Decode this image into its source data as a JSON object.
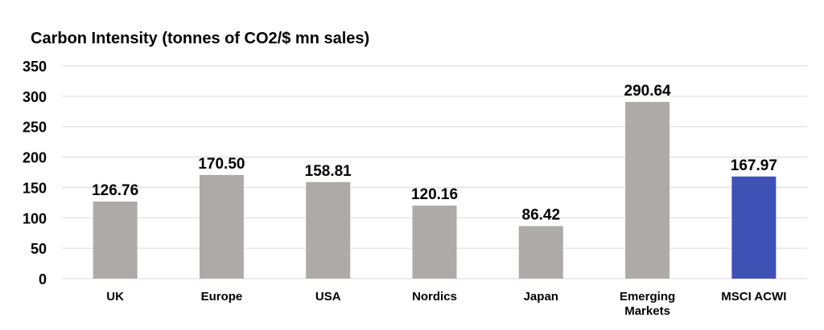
{
  "chart_data": {
    "type": "bar",
    "title": "Carbon Intensity (tonnes of CO2/$ mn sales)",
    "xlabel": "",
    "ylabel": "",
    "ylim": [
      0,
      350
    ],
    "yticks": [
      0,
      50,
      100,
      150,
      200,
      250,
      300,
      350
    ],
    "grid": true,
    "categories": [
      "UK",
      "Europe",
      "USA",
      "Nordics",
      "Japan",
      "Emerging Markets",
      "MSCI ACWI"
    ],
    "values": [
      126.76,
      170.5,
      158.81,
      120.16,
      86.42,
      290.64,
      167.97
    ],
    "data_labels": [
      "126.76",
      "170.50",
      "158.81",
      "120.16",
      "86.42",
      "290.64",
      "167.97"
    ],
    "colors": {
      "default_bar": "#aeaaaa",
      "highlight_bar": "#3f51b5",
      "gridline": "#d9d9d9"
    },
    "highlight_category": "MSCI ACWI"
  }
}
